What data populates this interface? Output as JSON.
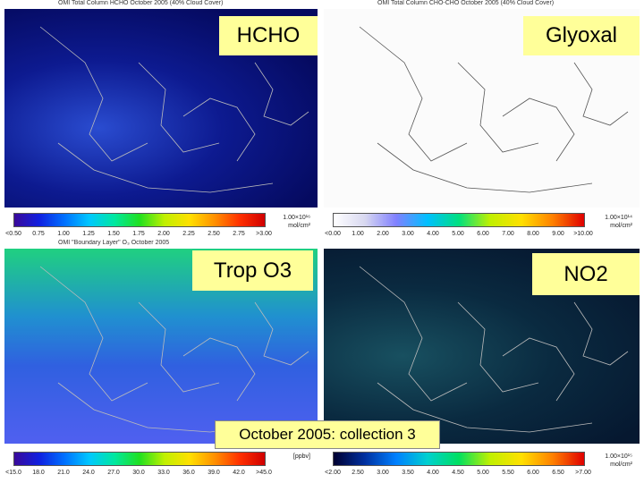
{
  "panels": [
    {
      "title": "OMI Total Column HCHO October 2005 (40% Cloud Cover)",
      "label": "HCHO",
      "ticks": [
        "<0.50",
        "0.75",
        "1.00",
        "1.25",
        "1.50",
        "1.75",
        "2.00",
        "2.25",
        "2.50",
        "2.75",
        ">3.00"
      ],
      "unit": [
        "1.00×10¹⁶",
        "mol/cm²"
      ]
    },
    {
      "title": "OMI Total Column CHO-CHO October 2005 (40% Cloud Cover)",
      "label": "Glyoxal",
      "ticks": [
        "<0.00",
        "1.00",
        "2.00",
        "3.00",
        "4.00",
        "5.00",
        "6.00",
        "7.00",
        "8.00",
        "9.00",
        ">10.00"
      ],
      "unit": [
        "1.00×10¹⁴",
        "mol/cm²"
      ]
    },
    {
      "title": "OMI \"Boundary Layer\" O₃ October 2005",
      "label": "Trop O3",
      "ticks": [
        "<15.0",
        "18.0",
        "21.0",
        "24.0",
        "27.0",
        "30.0",
        "33.0",
        "36.0",
        "39.0",
        "42.0",
        ">45.0"
      ],
      "unit": [
        "[ppbv]"
      ]
    },
    {
      "title": "",
      "label": "NO2",
      "ticks": [
        "<2.00",
        "2.50",
        "3.00",
        "3.50",
        "4.00",
        "4.50",
        "5.00",
        "5.50",
        "6.00",
        "6.50",
        ">7.00"
      ],
      "unit": [
        "1.00×10¹⁵",
        "mol/cm²"
      ]
    }
  ],
  "caption": "October 2005: collection 3"
}
